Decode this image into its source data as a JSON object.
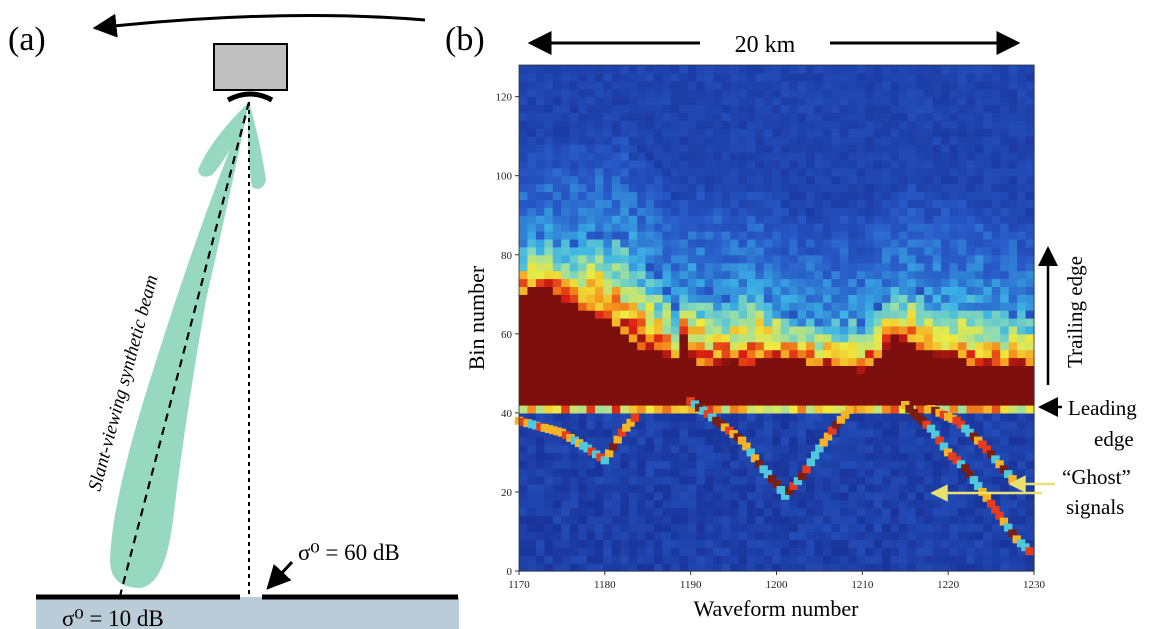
{
  "panel_a": {
    "label": "(a)",
    "beam_label": "Slant-viewing synthetic beam",
    "sigma_high": "σ⁰ = 60 dB",
    "sigma_low": "σ⁰ = 10 dB",
    "colors": {
      "beam": "#96d8c0",
      "instrument": "#c0c0c0",
      "water": "#b9ccd7"
    }
  },
  "panel_b": {
    "label": "(b)",
    "scale_label": "20 km",
    "xlabel": "Waveform  number",
    "ylabel": "Bin  number",
    "trailing_label": "Trailing edge",
    "leading_label": [
      "Leading",
      "edge"
    ],
    "ghost_label": [
      "“Ghost”",
      "signals"
    ],
    "colors": {
      "ghost_arrow": "#e8e070",
      "low": "#24389a",
      "high": "#7a1010"
    }
  },
  "chart_data": {
    "type": "heatmap",
    "xlabel": "Waveform  number",
    "ylabel": "Bin  number",
    "xlim": [
      1170,
      1230
    ],
    "ylim": [
      0,
      128
    ],
    "x_ticks": [
      1170,
      1180,
      1190,
      1200,
      1210,
      1220,
      1230
    ],
    "y_ticks": [
      0,
      20,
      40,
      60,
      80,
      100,
      120
    ],
    "leading_edge_bin": 42,
    "peak_top": [
      [
        1170,
        69
      ],
      [
        1172,
        71
      ],
      [
        1175,
        67
      ],
      [
        1178,
        64
      ],
      [
        1180,
        62
      ],
      [
        1182,
        58
      ],
      [
        1184,
        55
      ],
      [
        1186,
        53
      ],
      [
        1188,
        51
      ],
      [
        1189,
        58
      ],
      [
        1190,
        52
      ],
      [
        1192,
        50
      ],
      [
        1195,
        51
      ],
      [
        1198,
        52
      ],
      [
        1200,
        53
      ],
      [
        1203,
        52
      ],
      [
        1205,
        51
      ],
      [
        1207,
        50
      ],
      [
        1209,
        50
      ],
      [
        1210,
        49
      ],
      [
        1212,
        53
      ],
      [
        1214,
        58
      ],
      [
        1216,
        56
      ],
      [
        1218,
        54
      ],
      [
        1220,
        52
      ],
      [
        1222,
        52
      ],
      [
        1224,
        50
      ],
      [
        1226,
        50
      ],
      [
        1228,
        51
      ],
      [
        1230,
        51
      ]
    ],
    "trailing_top": [
      [
        1170,
        80
      ],
      [
        1172,
        84
      ],
      [
        1175,
        82
      ],
      [
        1178,
        84
      ],
      [
        1180,
        85
      ],
      [
        1182,
        84
      ],
      [
        1184,
        78
      ],
      [
        1186,
        74
      ],
      [
        1188,
        67
      ],
      [
        1190,
        72
      ],
      [
        1192,
        70
      ],
      [
        1195,
        69
      ],
      [
        1198,
        71
      ],
      [
        1200,
        67
      ],
      [
        1203,
        63
      ],
      [
        1205,
        63
      ],
      [
        1207,
        63
      ],
      [
        1209,
        64
      ],
      [
        1210,
        63
      ],
      [
        1212,
        66
      ],
      [
        1214,
        70
      ],
      [
        1216,
        71
      ],
      [
        1218,
        69
      ],
      [
        1220,
        68
      ],
      [
        1222,
        68
      ],
      [
        1224,
        68
      ],
      [
        1226,
        66
      ],
      [
        1228,
        65
      ],
      [
        1230,
        64
      ]
    ],
    "ghost_tracks": [
      [
        [
          1170,
          38
        ],
        [
          1175,
          35
        ],
        [
          1178,
          31
        ],
        [
          1180,
          28
        ],
        [
          1182,
          35
        ],
        [
          1184,
          40
        ]
      ],
      [
        [
          1190,
          43
        ],
        [
          1193,
          38
        ],
        [
          1196,
          33
        ],
        [
          1198,
          27
        ],
        [
          1200,
          22
        ],
        [
          1201,
          19
        ],
        [
          1203,
          24
        ],
        [
          1205,
          31
        ],
        [
          1207,
          37
        ],
        [
          1209,
          42
        ]
      ],
      [
        [
          1215,
          42
        ],
        [
          1218,
          36
        ],
        [
          1220,
          30
        ],
        [
          1222,
          26
        ],
        [
          1224,
          20
        ],
        [
          1226,
          14
        ],
        [
          1228,
          8
        ],
        [
          1230,
          4
        ]
      ],
      [
        [
          1218,
          41
        ],
        [
          1221,
          38
        ],
        [
          1224,
          32
        ],
        [
          1226,
          27
        ],
        [
          1228,
          22
        ]
      ]
    ]
  }
}
